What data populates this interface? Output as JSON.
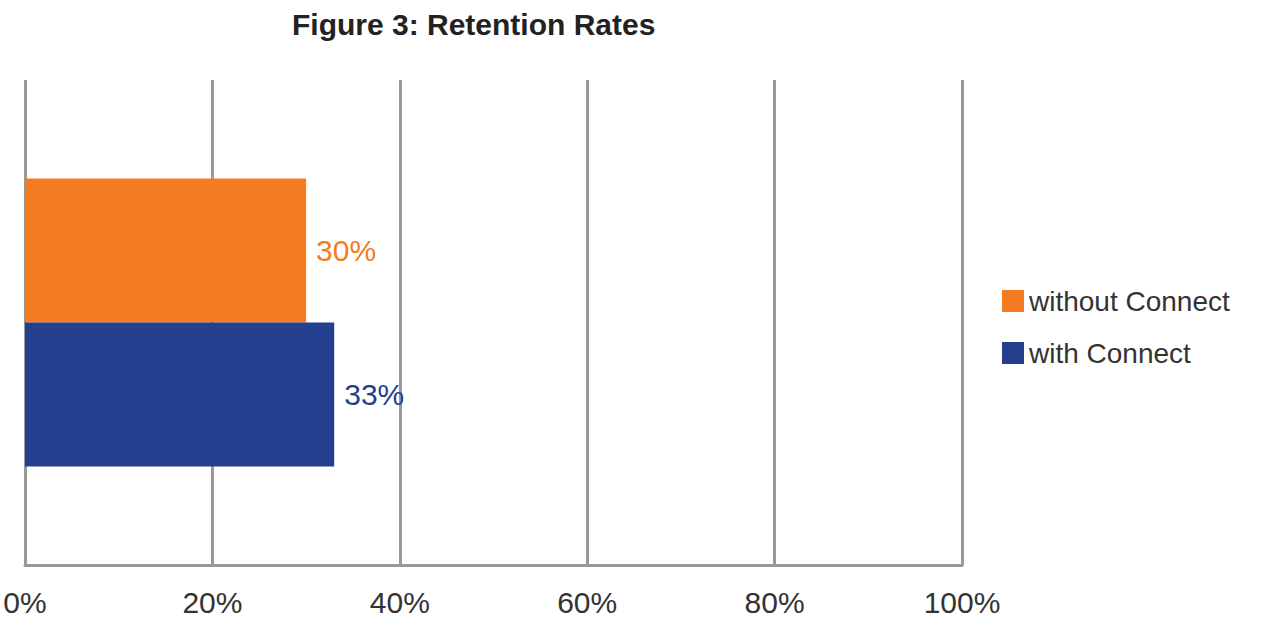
{
  "chart_data": {
    "type": "bar",
    "title": "Figure 3: Retention Rates",
    "orientation": "horizontal",
    "categories": [
      null
    ],
    "series": [
      {
        "name": "without Connect",
        "color": "#f47b20",
        "values": [
          30
        ],
        "value_labels": [
          "30%"
        ]
      },
      {
        "name": "with Connect",
        "color": "#253f8e",
        "values": [
          33
        ],
        "value_labels": [
          "33%"
        ]
      }
    ],
    "xlim": [
      0,
      100
    ],
    "xticks": [
      {
        "value": 0,
        "label": "0%"
      },
      {
        "value": 20,
        "label": "20%"
      },
      {
        "value": 40,
        "label": "40%"
      },
      {
        "value": 60,
        "label": "60%"
      },
      {
        "value": 80,
        "label": "80%"
      },
      {
        "value": 100,
        "label": "100%"
      }
    ],
    "grid": true,
    "legend": "right",
    "data_labels": true,
    "tick_labels": "x"
  }
}
